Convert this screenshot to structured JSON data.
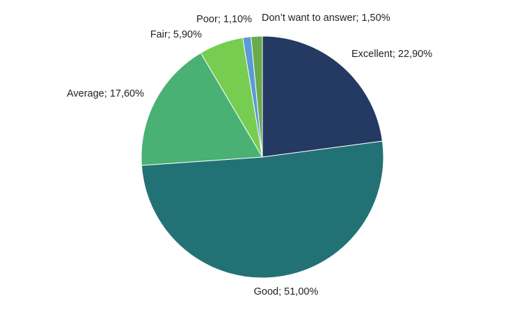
{
  "chart_data": {
    "type": "pie",
    "categories": [
      "Excellent",
      "Good",
      "Average",
      "Fair",
      "Poor",
      "Don’t want to answer"
    ],
    "values": [
      22.9,
      51.0,
      17.6,
      5.9,
      1.1,
      1.5
    ],
    "value_labels": [
      "22,90%",
      "51,00%",
      "17,60%",
      "5,90%",
      "1,10%",
      "1,50%"
    ],
    "label_separator": "; ",
    "colors": [
      "#243a63",
      "#227275",
      "#48b173",
      "#77cd4f",
      "#5b9bd5",
      "#6aaa4c"
    ]
  }
}
